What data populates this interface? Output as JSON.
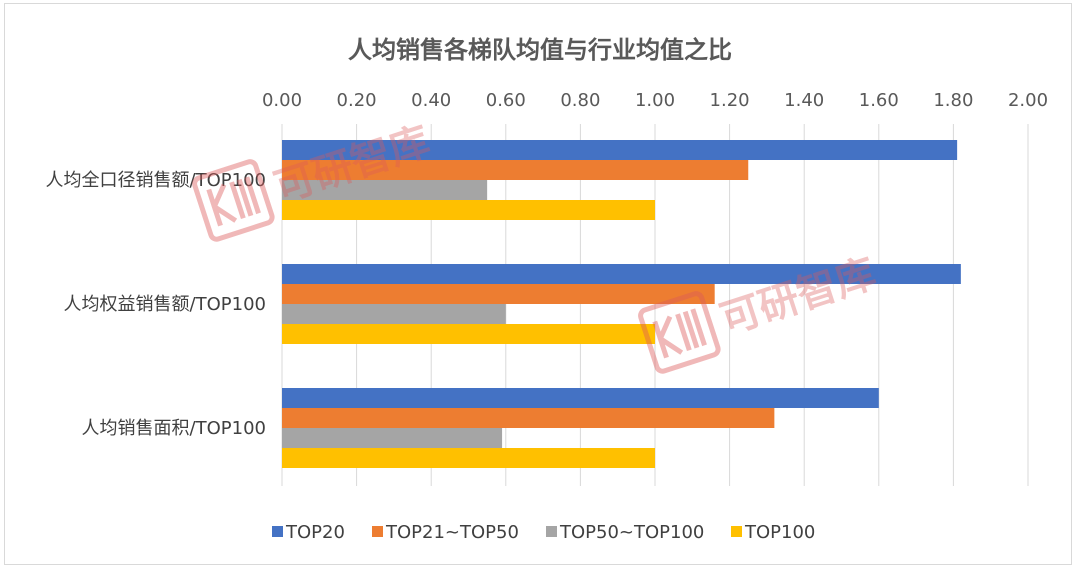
{
  "chart_data": {
    "type": "bar",
    "orientation": "horizontal",
    "title": "人均销售各梯队均值与行业均值之比",
    "categories": [
      "人均全口径销售额/TOP100",
      "人均权益销售额/TOP100",
      "人均销售面积/TOP100"
    ],
    "series": [
      {
        "name": "TOP20",
        "color": "#4472C4",
        "values": [
          1.81,
          1.82,
          1.6
        ]
      },
      {
        "name": "TOP21~TOP50",
        "color": "#ED7D31",
        "values": [
          1.25,
          1.16,
          1.32
        ]
      },
      {
        "name": "TOP50~TOP100",
        "color": "#A5A5A5",
        "values": [
          0.55,
          0.6,
          0.59
        ]
      },
      {
        "name": "TOP100",
        "color": "#FFC000",
        "values": [
          1.0,
          1.0,
          1.0
        ]
      }
    ],
    "xlim": [
      0,
      2.0
    ],
    "xticks": [
      "0.00",
      "0.20",
      "0.40",
      "0.60",
      "0.80",
      "1.00",
      "1.20",
      "1.40",
      "1.60",
      "1.80",
      "2.00"
    ],
    "xlabel": "",
    "ylabel": "",
    "grid": "vertical",
    "legend": "bottom"
  },
  "watermark": {
    "text": "可研智库",
    "logo_icon": "kyzk-logo-icon",
    "color": "#DC5A5A"
  }
}
